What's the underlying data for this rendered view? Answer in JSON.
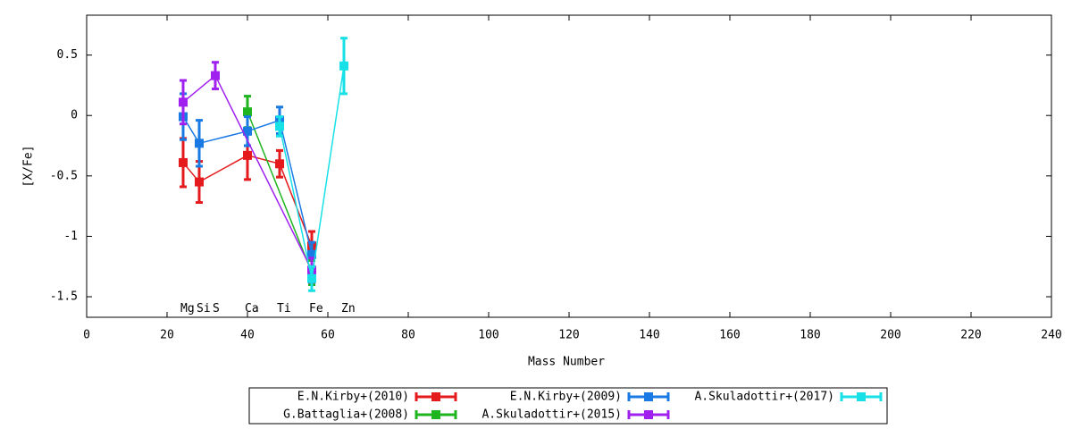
{
  "chart_data": {
    "type": "line",
    "xlabel": "Mass Number",
    "ylabel": "[X/Fe]",
    "xlim": [
      0,
      240
    ],
    "xticks": [
      0,
      20,
      40,
      60,
      80,
      100,
      120,
      140,
      160,
      180,
      200,
      220,
      240
    ],
    "ylim": [
      -1.67,
      0.83
    ],
    "yticks": [
      0.5,
      0,
      -0.5,
      -1,
      -1.5
    ],
    "legend": "bottom",
    "annotations": [
      {
        "text": "Mg",
        "x": 24,
        "y": -1.6
      },
      {
        "text": "Si",
        "x": 28,
        "y": -1.6
      },
      {
        "text": "S",
        "x": 32,
        "y": -1.6
      },
      {
        "text": "Ca",
        "x": 40,
        "y": -1.6
      },
      {
        "text": "Ti",
        "x": 48,
        "y": -1.6
      },
      {
        "text": "Fe",
        "x": 56,
        "y": -1.6
      },
      {
        "text": "Zn",
        "x": 64,
        "y": -1.6
      }
    ],
    "series": [
      {
        "name": "E.N.Kirby+(2010)",
        "color": "#e41a1c",
        "x": [
          24,
          28,
          40,
          48,
          56
        ],
        "values": [
          -0.39,
          -0.55,
          -0.33,
          -0.4,
          -1.08
        ],
        "errors": [
          0.2,
          0.17,
          0.2,
          0.11,
          0.12
        ]
      },
      {
        "name": "G.Battaglia+(2008)",
        "color": "#1fb51f",
        "x": [
          40,
          56
        ],
        "values": [
          0.03,
          -1.3
        ],
        "errors": [
          0.13,
          0.1
        ]
      },
      {
        "name": "E.N.Kirby+(2009)",
        "color": "#1a7ae4",
        "x": [
          24,
          28,
          40,
          48,
          56
        ],
        "values": [
          -0.01,
          -0.23,
          -0.13,
          -0.04,
          -1.15
        ],
        "errors": [
          0.19,
          0.19,
          0.12,
          0.11,
          0.1
        ]
      },
      {
        "name": "A.Skuladottir+(2015)",
        "color": "#a020f0",
        "x": [
          24,
          32,
          56
        ],
        "values": [
          0.11,
          0.33,
          -1.28
        ],
        "errors": [
          0.18,
          0.11,
          0.1
        ]
      },
      {
        "name": "A.Skuladottir+(2017)",
        "color": "#17e0e6",
        "x": [
          48,
          56,
          64
        ],
        "values": [
          -0.09,
          -1.35,
          0.41
        ],
        "errors": [
          0.08,
          0.1,
          0.23
        ]
      }
    ]
  }
}
